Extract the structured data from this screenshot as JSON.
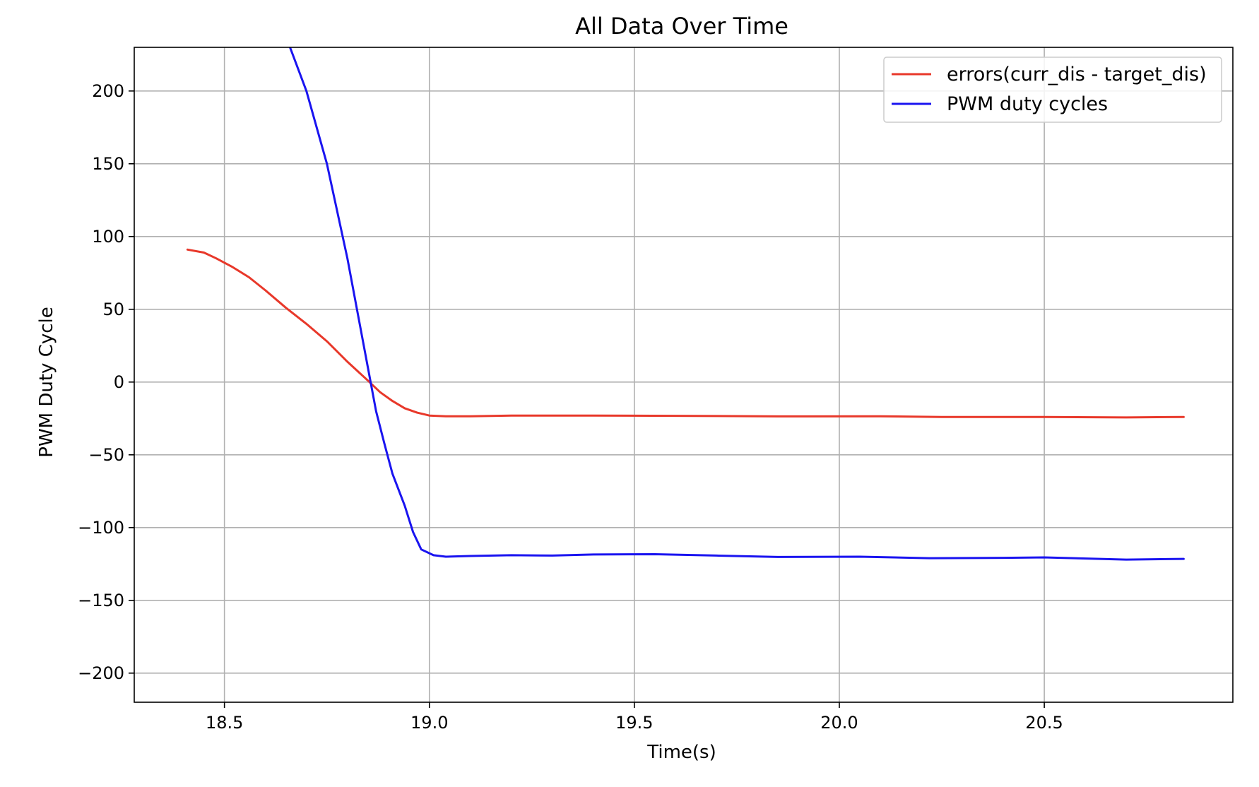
{
  "chart_data": {
    "type": "line",
    "title": "All Data Over Time",
    "xlabel": "Time(s)",
    "ylabel": "PWM Duty Cycle",
    "xlim": [
      18.28,
      20.96
    ],
    "ylim": [
      -220,
      230
    ],
    "x_ticks": [
      18.5,
      19.0,
      19.5,
      20.0,
      20.5
    ],
    "x_tick_labels": [
      "18.5",
      "19.0",
      "19.5",
      "20.0",
      "20.5"
    ],
    "y_ticks": [
      -200,
      -150,
      -100,
      -50,
      0,
      50,
      100,
      150,
      200
    ],
    "y_tick_labels": [
      "−200",
      "−150",
      "−100",
      "−50",
      "0",
      "50",
      "100",
      "150",
      "200"
    ],
    "grid": true,
    "legend_position": "top-right",
    "series": [
      {
        "name": "errors(curr_dis - target_dis)",
        "color": "#e8382a",
        "points": [
          [
            18.41,
            91
          ],
          [
            18.45,
            89
          ],
          [
            18.48,
            85
          ],
          [
            18.52,
            79
          ],
          [
            18.56,
            72
          ],
          [
            18.6,
            63
          ],
          [
            18.65,
            51
          ],
          [
            18.7,
            40
          ],
          [
            18.75,
            28
          ],
          [
            18.8,
            14
          ],
          [
            18.85,
            1
          ],
          [
            18.88,
            -7
          ],
          [
            18.91,
            -13
          ],
          [
            18.94,
            -18
          ],
          [
            18.97,
            -21
          ],
          [
            19.0,
            -23
          ],
          [
            19.04,
            -23.5
          ],
          [
            19.1,
            -23.5
          ],
          [
            19.2,
            -23
          ],
          [
            19.4,
            -23
          ],
          [
            19.6,
            -23.2
          ],
          [
            19.85,
            -23.6
          ],
          [
            20.1,
            -23.5
          ],
          [
            20.25,
            -24
          ],
          [
            20.5,
            -24
          ],
          [
            20.7,
            -24.3
          ],
          [
            20.84,
            -24
          ]
        ]
      },
      {
        "name": "PWM duty cycles",
        "color": "#1a14f0",
        "points": [
          [
            18.66,
            230
          ],
          [
            18.7,
            200
          ],
          [
            18.75,
            150
          ],
          [
            18.8,
            85
          ],
          [
            18.85,
            10
          ],
          [
            18.87,
            -20
          ],
          [
            18.89,
            -42
          ],
          [
            18.91,
            -63
          ],
          [
            18.94,
            -85
          ],
          [
            18.96,
            -103
          ],
          [
            18.98,
            -115
          ],
          [
            19.01,
            -119
          ],
          [
            19.04,
            -120
          ],
          [
            19.1,
            -119.5
          ],
          [
            19.2,
            -119
          ],
          [
            19.3,
            -119.2
          ],
          [
            19.4,
            -118.5
          ],
          [
            19.55,
            -118.3
          ],
          [
            19.7,
            -119.2
          ],
          [
            19.85,
            -120.2
          ],
          [
            20.05,
            -120
          ],
          [
            20.22,
            -121
          ],
          [
            20.4,
            -120.8
          ],
          [
            20.5,
            -120.5
          ],
          [
            20.7,
            -122
          ],
          [
            20.84,
            -121.5
          ]
        ]
      }
    ]
  }
}
